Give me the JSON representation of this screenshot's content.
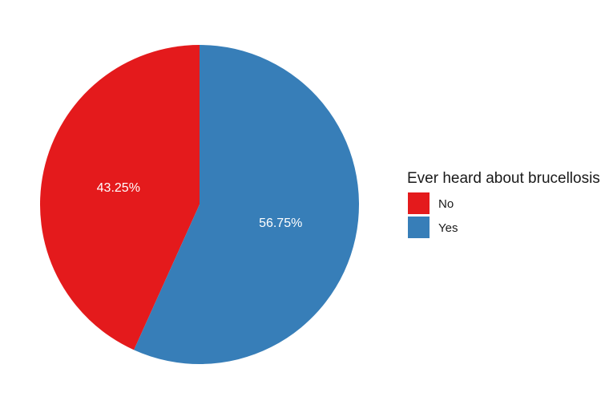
{
  "chart_data": {
    "type": "pie",
    "title": "",
    "legend": {
      "title": "Ever heard about brucellosis",
      "placement": "right"
    },
    "slices": [
      {
        "label": "No",
        "value": 43.25,
        "display": "43.25%",
        "color": "#e41a1c"
      },
      {
        "label": "Yes",
        "value": 56.75,
        "display": "56.75%",
        "color": "#377eb8"
      }
    ]
  }
}
